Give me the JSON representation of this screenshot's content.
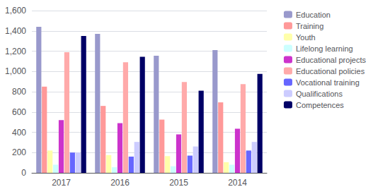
{
  "chart_data": {
    "type": "bar",
    "categories": [
      "2017",
      "2016",
      "2015",
      "2014"
    ],
    "series": [
      {
        "name": "Education",
        "color": "#9999CC",
        "values": [
          1440,
          1370,
          1155,
          1210
        ]
      },
      {
        "name": "Training",
        "color": "#FF9999",
        "values": [
          850,
          660,
          525,
          695
        ]
      },
      {
        "name": "Youth",
        "color": "#FFFFAA",
        "values": [
          220,
          175,
          165,
          105
        ]
      },
      {
        "name": "Lifelong learning",
        "color": "#CCFFFF",
        "values": [
          80,
          55,
          65,
          80
        ]
      },
      {
        "name": "Educational projects",
        "color": "#CC33CC",
        "values": [
          520,
          490,
          380,
          435
        ]
      },
      {
        "name": "Educational policies",
        "color": "#FFAAAA",
        "values": [
          1190,
          1090,
          895,
          875
        ]
      },
      {
        "name": "Vocational training",
        "color": "#6666FF",
        "values": [
          200,
          160,
          170,
          220
        ]
      },
      {
        "name": "Qualifications",
        "color": "#CCCCFF",
        "values": [
          200,
          305,
          260,
          305
        ]
      },
      {
        "name": "Competences",
        "color": "#000066",
        "values": [
          1350,
          1145,
          810,
          975
        ]
      }
    ],
    "ylim": [
      0,
      1600
    ],
    "yticks": [
      0,
      200,
      400,
      600,
      800,
      1000,
      1200,
      1400,
      1600
    ],
    "grid": true,
    "legend": "right"
  }
}
